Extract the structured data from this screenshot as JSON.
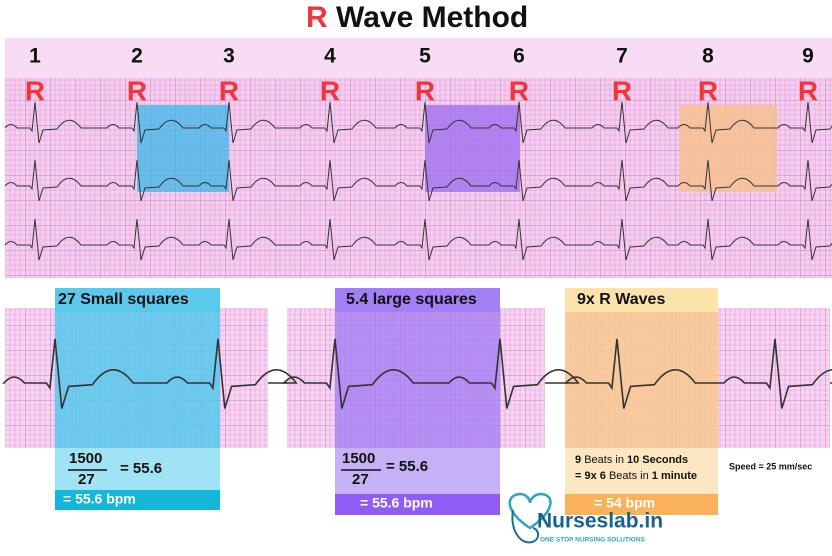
{
  "title": {
    "r": "R",
    "rest": "Wave Method"
  },
  "strip": {
    "beats": [
      {
        "number": "1",
        "label": "R"
      },
      {
        "number": "2",
        "label": "R"
      },
      {
        "number": "3",
        "label": "R"
      },
      {
        "number": "4",
        "label": "R"
      },
      {
        "number": "5",
        "label": "R"
      },
      {
        "number": "6",
        "label": "R"
      },
      {
        "number": "7",
        "label": "R"
      },
      {
        "number": "8",
        "label": "R"
      },
      {
        "number": "9",
        "label": "R"
      }
    ]
  },
  "panels": [
    {
      "heading": "27 Small squares",
      "numerator": "1500",
      "denominator": "27",
      "equals": "= 55.6",
      "result": "= 55.6 bpm"
    },
    {
      "heading": "5.4 large squares",
      "numerator": "1500",
      "denominator": "27",
      "equals": "=  55.6",
      "result": "= 55.6 bpm"
    },
    {
      "heading": "9x R Waves",
      "lines": [
        [
          "9",
          "Beats in",
          "10 Seconds"
        ],
        [
          "= 9x 6",
          "Beats in",
          "1 minute"
        ]
      ],
      "result": "= 54 bpm"
    }
  ],
  "speed": "Speed = 25 mm/sec",
  "logo": {
    "name": "Nurseslab.in",
    "tagline": "ONE STOP NURSING SOLUTIONS"
  }
}
